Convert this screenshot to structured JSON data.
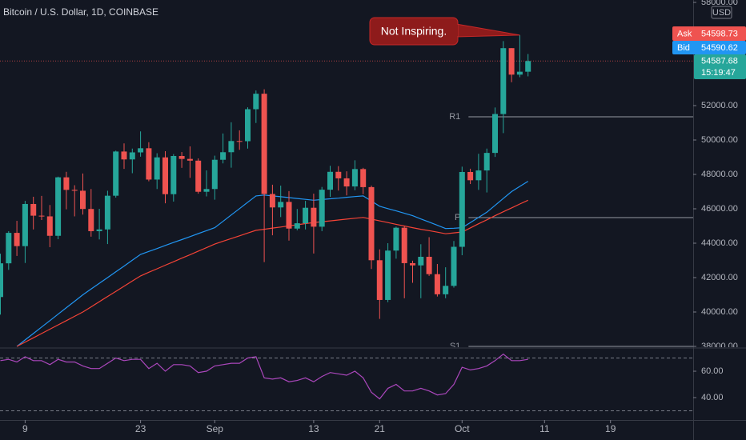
{
  "chart_data": [
    {
      "type": "candlestick",
      "title": "Bitcoin / U.S. Dollar, 1D, COINBASE",
      "x": [
        "08-06",
        "08-07",
        "08-08",
        "08-09",
        "08-10",
        "08-11",
        "08-12",
        "08-13",
        "08-14",
        "08-15",
        "08-16",
        "08-17",
        "08-18",
        "08-19",
        "08-20",
        "08-21",
        "08-22",
        "08-23",
        "08-24",
        "08-25",
        "08-26",
        "08-27",
        "08-28",
        "08-29",
        "08-30",
        "08-31",
        "09-01",
        "09-02",
        "09-03",
        "09-04",
        "09-05",
        "09-06",
        "09-07",
        "09-08",
        "09-09",
        "09-10",
        "09-11",
        "09-12",
        "09-13",
        "09-14",
        "09-15",
        "09-16",
        "09-17",
        "09-18",
        "09-19",
        "09-20",
        "09-21",
        "09-22",
        "09-23",
        "09-24",
        "09-25",
        "09-26",
        "09-27",
        "09-28",
        "09-29",
        "09-30",
        "10-01",
        "10-02",
        "10-03",
        "10-04",
        "10-05",
        "10-06",
        "10-07",
        "10-08",
        "10-09"
      ],
      "open": [
        40870,
        42830,
        44600,
        43830,
        46280,
        45600,
        45560,
        44430,
        47830,
        47100,
        47050,
        45990,
        44700,
        44800,
        46760,
        49330,
        48870,
        49280,
        49520,
        47700,
        48990,
        46850,
        49070,
        48900,
        48800,
        46990,
        47150,
        48850,
        49290,
        49940,
        49930,
        51790,
        52690,
        46860,
        46080,
        46400,
        44850,
        45160,
        46060,
        44960,
        47110,
        48150,
        47770,
        47300,
        48310,
        47260,
        43010,
        40700,
        43570,
        44900,
        42840,
        42710,
        43210,
        42200,
        41030,
        41520,
        43790,
        48140,
        47660,
        48230,
        49250,
        51510,
        55340,
        53800,
        53970
      ],
      "high": [
        43390,
        44700,
        45300,
        46460,
        46700,
        46750,
        46220,
        47870,
        48150,
        47370,
        48050,
        47150,
        46000,
        47050,
        49380,
        49800,
        49500,
        50500,
        49870,
        49230,
        49350,
        49180,
        49300,
        49630,
        48930,
        48230,
        49090,
        50380,
        51030,
        50560,
        51900,
        52880,
        52950,
        47400,
        47350,
        47030,
        45990,
        46460,
        46880,
        47270,
        48500,
        48480,
        48180,
        48820,
        48380,
        47350,
        43640,
        44000,
        44960,
        45000,
        42980,
        43940,
        44350,
        42790,
        42600,
        44130,
        48450,
        48330,
        49200,
        49500,
        51890,
        55750,
        55340,
        56100,
        55000
      ],
      "low": [
        39850,
        42450,
        43260,
        42850,
        44800,
        45350,
        43770,
        44230,
        45970,
        45560,
        45660,
        44380,
        44220,
        43950,
        46650,
        48320,
        48070,
        49030,
        47600,
        47150,
        46320,
        46420,
        48380,
        47800,
        46880,
        46720,
        46530,
        48640,
        48390,
        49430,
        49500,
        50990,
        42900,
        44460,
        45520,
        44150,
        44750,
        44800,
        43400,
        44700,
        46700,
        47060,
        46780,
        47080,
        46850,
        42500,
        39600,
        40570,
        43100,
        40800,
        41700,
        40800,
        42100,
        40900,
        40800,
        41420,
        43300,
        47440,
        47100,
        46950,
        49020,
        50400,
        53360,
        53650,
        53700
      ],
      "close": [
        42830,
        44600,
        43830,
        46280,
        45600,
        45560,
        44430,
        47830,
        47100,
        47050,
        45990,
        44700,
        44800,
        46760,
        49330,
        48870,
        49280,
        49520,
        47700,
        48990,
        46850,
        49070,
        48900,
        48800,
        46990,
        47150,
        48850,
        49290,
        49940,
        49930,
        51790,
        52690,
        46860,
        46080,
        46400,
        44850,
        45160,
        46060,
        44960,
        47110,
        48150,
        47770,
        47300,
        48310,
        47260,
        43010,
        40700,
        43570,
        44900,
        42840,
        42710,
        43210,
        42200,
        41030,
        41520,
        43790,
        48140,
        47660,
        48230,
        49250,
        51510,
        55340,
        53800,
        53970,
        54590
      ],
      "up_color": "#26a69a",
      "down_color": "#ef5350",
      "series": [
        {
          "color": "#2196f3",
          "values": [
            null,
            null,
            38000,
            38375,
            38750,
            39125,
            39500,
            39875,
            40250,
            40625,
            41000,
            41340,
            41670,
            42000,
            42340,
            42670,
            43010,
            43350,
            43520,
            43690,
            43870,
            44040,
            44210,
            44380,
            44560,
            44730,
            44900,
            45270,
            45640,
            46010,
            46380,
            46750,
            46800,
            46750,
            46700,
            46650,
            46600,
            46550,
            46500,
            46540,
            46580,
            46620,
            46670,
            46710,
            46750,
            46450,
            46150,
            46010,
            45880,
            45740,
            45600,
            45410,
            45230,
            45040,
            44850,
            44870,
            44900,
            45200,
            45500,
            45800,
            46200,
            46600,
            47000,
            47300,
            47600
          ]
        },
        {
          "color": "#f44336",
          "values": [
            null,
            null,
            38000,
            38250,
            38500,
            38750,
            39000,
            39250,
            39500,
            39750,
            40000,
            40300,
            40600,
            40900,
            41200,
            41500,
            41800,
            42100,
            42310,
            42510,
            42720,
            42920,
            43130,
            43330,
            43540,
            43740,
            43950,
            44110,
            44270,
            44430,
            44590,
            44750,
            44810,
            44880,
            44940,
            45010,
            45070,
            45140,
            45200,
            45250,
            45300,
            45350,
            45400,
            45450,
            45500,
            45400,
            45300,
            45200,
            45100,
            45000,
            44900,
            44810,
            44730,
            44640,
            44550,
            44600,
            44650,
            44890,
            45130,
            45360,
            45600,
            45830,
            46050,
            46280,
            46500
          ]
        }
      ],
      "levels": [
        {
          "label": "R1",
          "value": 51350
        },
        {
          "label": "P",
          "value": 45490
        },
        {
          "label": "S1",
          "value": 38000
        }
      ],
      "annotation": "Not Inspiring.",
      "ylim": [
        38000,
        58000
      ],
      "yticks": [
        {
          "value": 38000,
          "label": "38000.00"
        },
        {
          "value": 40000,
          "label": "40000.00"
        },
        {
          "value": 42000,
          "label": "42000.00"
        },
        {
          "value": 44000,
          "label": "44000.00"
        },
        {
          "value": 46000,
          "label": "46000.00"
        },
        {
          "value": 48000,
          "label": "48000.00"
        },
        {
          "value": 50000,
          "label": "50000.00"
        },
        {
          "value": 52000,
          "label": "52000.00"
        },
        {
          "value": 58000,
          "label": "58000.00"
        }
      ],
      "xticks": [
        {
          "value": "08-09",
          "label": "9"
        },
        {
          "value": "08-23",
          "label": "23"
        },
        {
          "value": "09-01",
          "label": "Sep"
        },
        {
          "value": "09-13",
          "label": "13"
        },
        {
          "value": "09-21",
          "label": "21"
        },
        {
          "value": "10-01",
          "label": "Oct"
        },
        {
          "value": "10-11",
          "label": "11"
        },
        {
          "value": "10-19",
          "label": "19"
        }
      ],
      "unit": "USD",
      "quote": {
        "ask_label": "Ask",
        "ask": 54598.73,
        "bid_label": "Bid",
        "bid": 54590.62,
        "last": 54587.68,
        "countdown": "15:19:47"
      }
    },
    {
      "type": "line",
      "color": "#ab47bc",
      "values": [
        68,
        69,
        67,
        71,
        68,
        68,
        65,
        69,
        67,
        67,
        64,
        62,
        62,
        66,
        70,
        68,
        69,
        69,
        62,
        66,
        60,
        65,
        65,
        64,
        59,
        60,
        64,
        65,
        66,
        66,
        70,
        71,
        55,
        54,
        55,
        52,
        53,
        55,
        52,
        56,
        59,
        58,
        57,
        60,
        55,
        44,
        39,
        47,
        50,
        45,
        45,
        47,
        45,
        42,
        43,
        50,
        63,
        61,
        62,
        64,
        68,
        73,
        68,
        68,
        69
      ],
      "ylim": [
        23,
        77
      ],
      "yticks": [
        {
          "value": 60,
          "label": "60.00"
        },
        {
          "value": 40,
          "label": "40.00"
        }
      ],
      "bands": [
        70,
        30
      ]
    }
  ]
}
